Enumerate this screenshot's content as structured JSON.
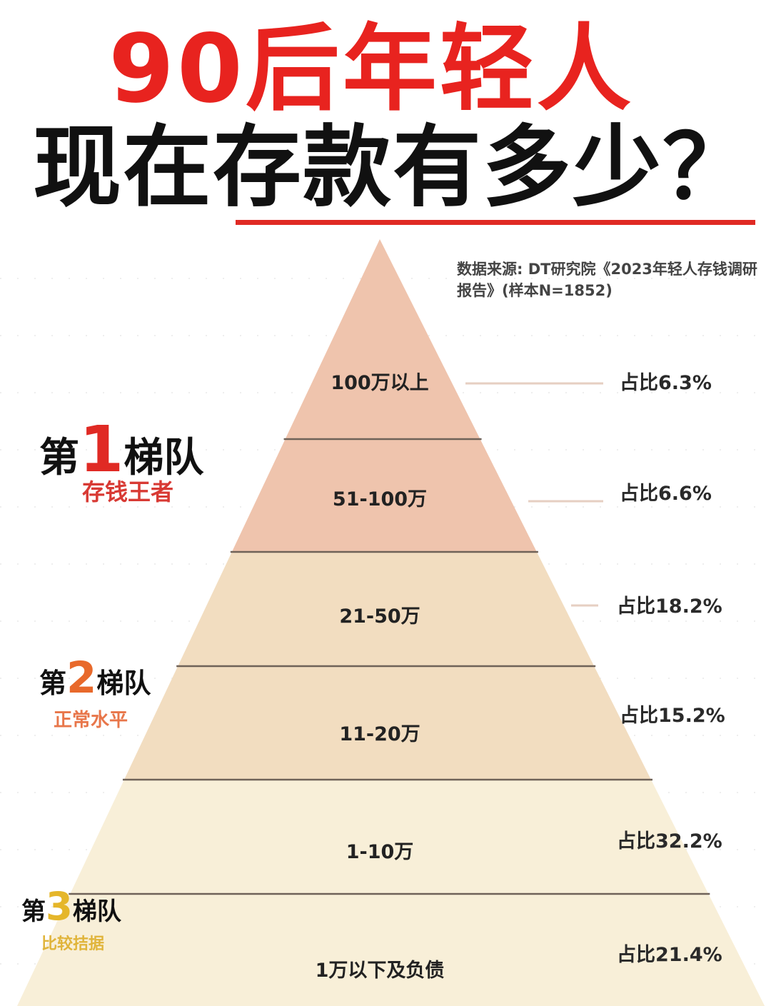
{
  "title": {
    "line1": "90后年轻人",
    "line2": "现在存款有多少？"
  },
  "source": "数据来源: DT研究院《2023年轻人存钱调研报告》(样本N=1852)",
  "colors": {
    "title_red": "#e8231f",
    "tier1": "#efc4ad",
    "tier2": "#f2ddc0",
    "tier3": "#f8efd8",
    "tier1_accent": "#e02a24",
    "tier2_accent": "#e8692b",
    "tier3_accent": "#e5b62a"
  },
  "tiers": [
    {
      "prefix": "第",
      "num": "1",
      "suffix": "梯队",
      "subtitle": "存钱王者"
    },
    {
      "prefix": "第",
      "num": "2",
      "suffix": "梯队",
      "subtitle": "正常水平"
    },
    {
      "prefix": "第",
      "num": "3",
      "suffix": "梯队",
      "subtitle": "比较拮据"
    }
  ],
  "chart_data": {
    "type": "pyramid",
    "categories": [
      "100万以上",
      "51-100万",
      "21-50万",
      "11-20万",
      "1-10万",
      "1万以下及负债"
    ],
    "values": [
      6.3,
      6.6,
      18.2,
      15.2,
      32.2,
      21.4
    ],
    "value_labels": [
      "占比6.3%",
      "占比6.6%",
      "占比18.2%",
      "占比15.2%",
      "占比32.2%",
      "占比21.4%"
    ],
    "unit": "%",
    "tier_of_category": [
      1,
      1,
      2,
      2,
      3,
      3
    ]
  }
}
